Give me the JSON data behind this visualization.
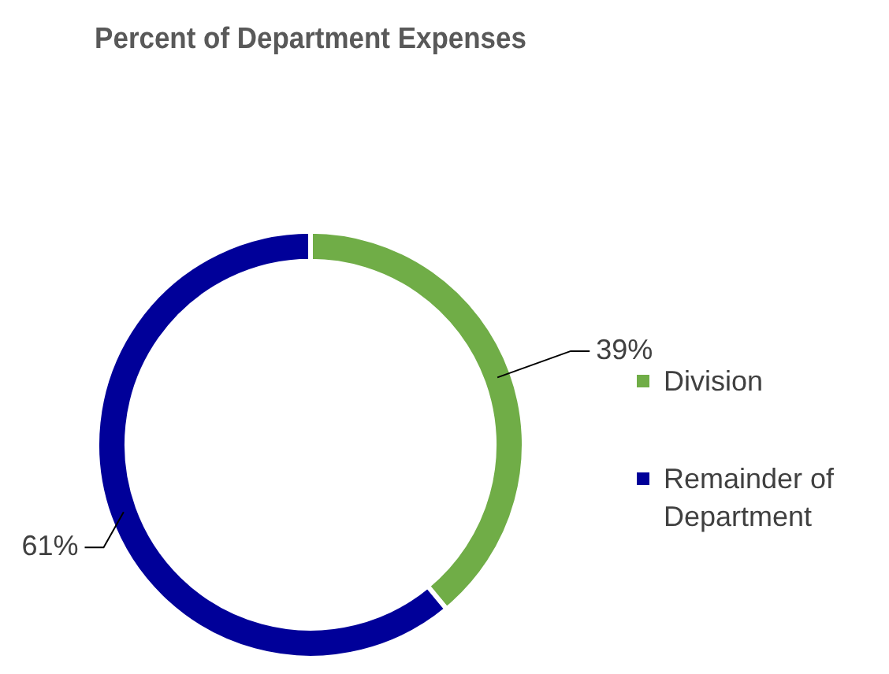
{
  "chart_data": {
    "type": "donut",
    "title": "Percent of Department Expenses",
    "categories": [
      "Division",
      "Remainder of Department"
    ],
    "values": [
      39,
      61
    ],
    "colors": [
      "#70ad47",
      "#000099"
    ],
    "value_labels": [
      "39%",
      "61%"
    ],
    "legend": "right"
  }
}
